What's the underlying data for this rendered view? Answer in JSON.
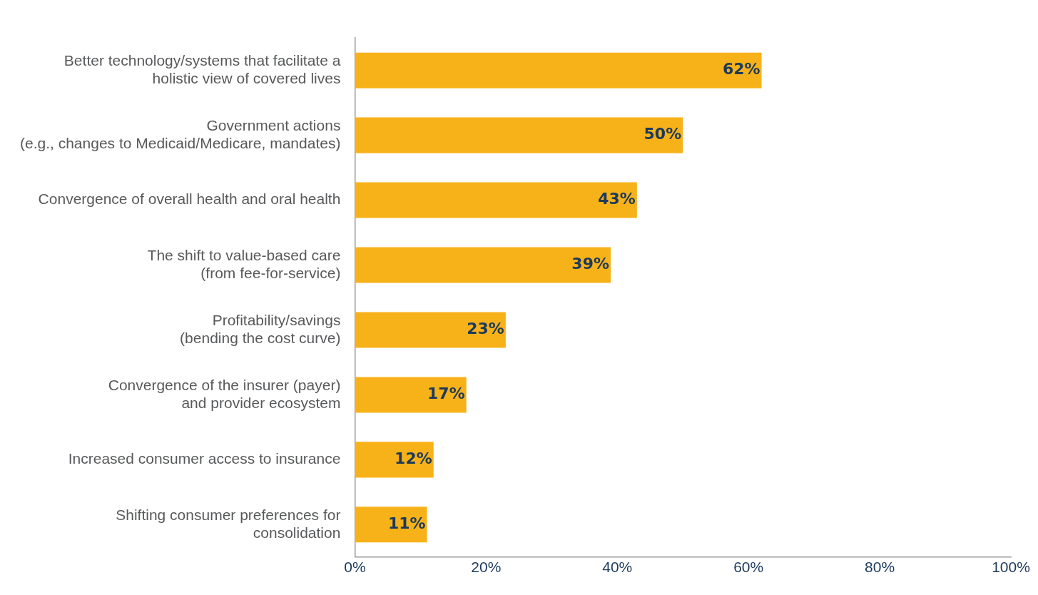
{
  "chart_data": {
    "type": "bar",
    "orientation": "horizontal",
    "categories": [
      "Better technology/systems that facilitate a\nholistic view of covered lives",
      "Government actions\n(e.g., changes to Medicaid/Medicare, mandates)",
      "Convergence of overall health and oral health",
      "The shift to value-based care\n(from fee-for-service)",
      "Profitability/savings\n(bending the cost curve)",
      "Convergence of the insurer (payer)\nand provider ecosystem",
      "Increased consumer access to insurance",
      "Shifting consumer preferences for\nconsolidation"
    ],
    "values": [
      62,
      50,
      43,
      39,
      23,
      17,
      12,
      11
    ],
    "value_labels": [
      "62%",
      "50%",
      "43%",
      "39%",
      "23%",
      "17%",
      "12%",
      "11%"
    ],
    "color": "#f8b219",
    "xlim": [
      0,
      100
    ],
    "xticks": [
      {
        "value": 0,
        "label": "0%"
      },
      {
        "value": 20,
        "label": "20%"
      },
      {
        "value": 40,
        "label": "40%"
      },
      {
        "value": 60,
        "label": "60%"
      },
      {
        "value": 80,
        "label": "80%"
      },
      {
        "value": 100,
        "label": "100%"
      }
    ],
    "grid": false,
    "legend": false
  }
}
